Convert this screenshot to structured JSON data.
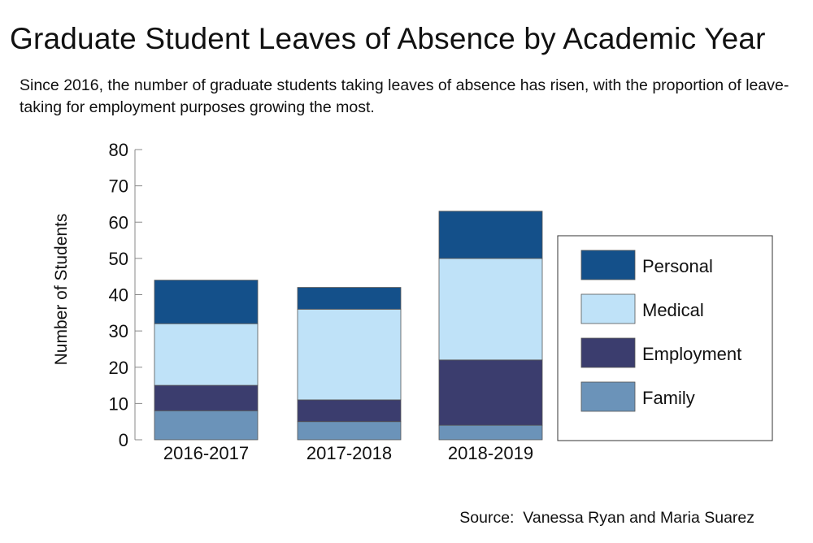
{
  "title": "Graduate Student Leaves of Absence by Academic Year",
  "subtitle": "Since 2016, the number of graduate students taking leaves of absence has risen, with the proportion of leave-taking for employment purposes growing the most.",
  "source": "Source:  Vanessa Ryan and Maria Suarez",
  "colors": {
    "Personal": "#14508a",
    "Medical": "#bfe2f8",
    "Employment": "#3b3d6e",
    "Family": "#6b93b9"
  },
  "chart_data": {
    "type": "bar",
    "stacked": true,
    "title": "Graduate Student Leaves of Absence by Academic Year",
    "xlabel": "",
    "ylabel": "Number of Students",
    "ylim": [
      0,
      80
    ],
    "yticks": [
      0,
      10,
      20,
      30,
      40,
      50,
      60,
      70,
      80
    ],
    "grid": false,
    "legend_position": "right",
    "categories": [
      "2016-2017",
      "2017-2018",
      "2018-2019"
    ],
    "series": [
      {
        "name": "Family",
        "values": [
          8,
          5,
          4
        ]
      },
      {
        "name": "Employment",
        "values": [
          7,
          6,
          18
        ]
      },
      {
        "name": "Medical",
        "values": [
          17,
          25,
          28
        ]
      },
      {
        "name": "Personal",
        "values": [
          12,
          6,
          13
        ]
      }
    ],
    "legend_order": [
      "Personal",
      "Medical",
      "Employment",
      "Family"
    ]
  }
}
